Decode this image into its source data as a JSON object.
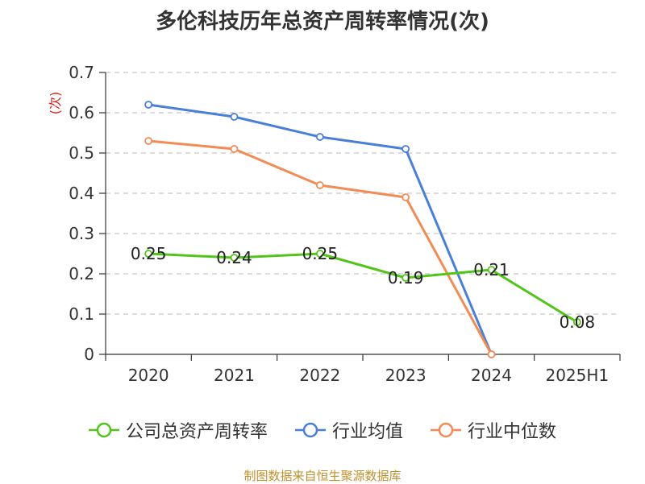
{
  "chart_data": {
    "type": "line",
    "title": "多伦科技历年总资产周转率情况(次)",
    "ylabel": "(次)",
    "xlabel": "",
    "categories": [
      "2020",
      "2021",
      "2022",
      "2023",
      "2024",
      "2025H1"
    ],
    "ylim": [
      0,
      0.7
    ],
    "yticks": [
      "0",
      "0.1",
      "0.2",
      "0.3",
      "0.4",
      "0.5",
      "0.6",
      "0.7"
    ],
    "grid": true,
    "legend_position": "bottom",
    "series": [
      {
        "name": "公司总资产周转率",
        "color": "#52c41a",
        "values": [
          0.25,
          0.24,
          0.25,
          0.19,
          0.21,
          0.08
        ],
        "labels": [
          "0.25",
          "0.24",
          "0.25",
          "0.19",
          "0.21",
          "0.08"
        ]
      },
      {
        "name": "行业均值",
        "color": "#4a7fd8",
        "values": [
          0.62,
          0.59,
          0.54,
          0.51,
          0.0,
          null
        ]
      },
      {
        "name": "行业中位数",
        "color": "#f28b54",
        "values": [
          0.53,
          0.51,
          0.42,
          0.39,
          0.0,
          null
        ]
      }
    ],
    "ylabel_color": "#e0201b"
  },
  "footer": {
    "source": "制图数据来自恒生聚源数据库"
  }
}
